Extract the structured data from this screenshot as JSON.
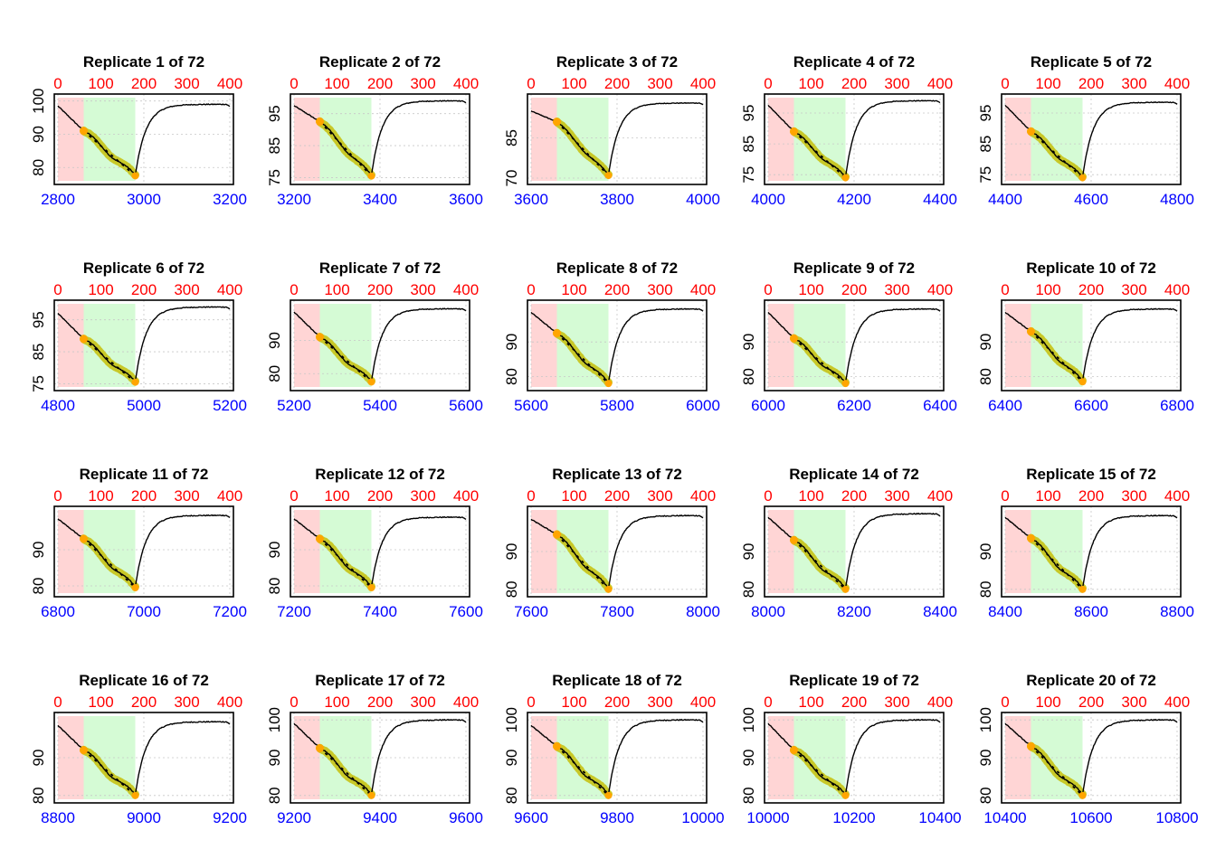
{
  "colors": {
    "background": "#ffffff",
    "title": "#000000",
    "bottom_axis": "#0000ff",
    "top_axis": "#ff0000",
    "trace": "#000000",
    "fit_highlight": "#c8c828",
    "fit_start_point": "#ffa500",
    "fit_line": "#000000",
    "region_red": "#ffd5d5",
    "region_green": "#d5fbd5",
    "grid": "#c8c8c8",
    "frame": "#000000"
  },
  "chart_data": {
    "type": "scatter",
    "layout": "grid of 5 columns by 4 rows",
    "grid": true,
    "shared": {
      "top_axis": {
        "ticks": [
          0,
          100,
          200,
          300,
          400
        ]
      },
      "regions": [
        {
          "name": "red",
          "from": 0,
          "to": 60
        },
        {
          "name": "green",
          "from": 60,
          "to": 180
        }
      ],
      "rise_offset": 180
    },
    "panels": [
      {
        "title": "Replicate 1 of 72",
        "x_ticks": [
          "2800",
          "3000",
          "3200"
        ],
        "xlim": [
          2800,
          3200
        ],
        "y_ticks": [
          "80",
          "90",
          "100"
        ],
        "ylim": [
          76,
          101
        ],
        "series": {
          "start": 98.5,
          "fit_start": 91.0,
          "fit_end": 77.5,
          "plateau": 99.0
        }
      },
      {
        "title": "Replicate 2 of 72",
        "x_ticks": [
          "3200",
          "3400",
          "3600"
        ],
        "xlim": [
          3200,
          3600
        ],
        "y_ticks": [
          "75",
          "85",
          "95"
        ],
        "ylim": [
          74,
          100
        ],
        "series": {
          "start": 97.5,
          "fit_start": 92.5,
          "fit_end": 75.5,
          "plateau": 99.0
        }
      },
      {
        "title": "Replicate 3 of 72",
        "x_ticks": [
          "3600",
          "3800",
          "4000"
        ],
        "xlim": [
          3600,
          4000
        ],
        "y_ticks": [
          "70",
          "85"
        ],
        "ylim": [
          69,
          100
        ],
        "series": {
          "start": 95.0,
          "fit_start": 91.0,
          "fit_end": 71.0,
          "plateau": 98.0
        }
      },
      {
        "title": "Replicate 4 of 72",
        "x_ticks": [
          "4000",
          "4200",
          "4400"
        ],
        "xlim": [
          4000,
          4400
        ],
        "y_ticks": [
          "75",
          "85",
          "95"
        ],
        "ylim": [
          73,
          100
        ],
        "series": {
          "start": 97.5,
          "fit_start": 89.0,
          "fit_end": 74.0,
          "plateau": 99.0
        }
      },
      {
        "title": "Replicate 5 of 72",
        "x_ticks": [
          "4400",
          "4600",
          "4800"
        ],
        "xlim": [
          4400,
          4800
        ],
        "y_ticks": [
          "75",
          "85",
          "95"
        ],
        "ylim": [
          73,
          100
        ],
        "series": {
          "start": 97.5,
          "fit_start": 89.0,
          "fit_end": 74.0,
          "plateau": 98.5
        }
      },
      {
        "title": "Replicate 6 of 72",
        "x_ticks": [
          "4800",
          "5000",
          "5200"
        ],
        "xlim": [
          4800,
          5200
        ],
        "y_ticks": [
          "75",
          "85",
          "95"
        ],
        "ylim": [
          74,
          100
        ],
        "series": {
          "start": 97.0,
          "fit_start": 89.0,
          "fit_end": 75.5,
          "plateau": 99.0
        }
      },
      {
        "title": "Replicate 7 of 72",
        "x_ticks": [
          "5200",
          "5400",
          "5600"
        ],
        "xlim": [
          5200,
          5600
        ],
        "y_ticks": [
          "80",
          "90"
        ],
        "ylim": [
          76,
          101
        ],
        "series": {
          "start": 98.5,
          "fit_start": 91.0,
          "fit_end": 77.5,
          "plateau": 99.5
        }
      },
      {
        "title": "Replicate 8 of 72",
        "x_ticks": [
          "5600",
          "5800",
          "6000"
        ],
        "xlim": [
          5600,
          6000
        ],
        "y_ticks": [
          "80",
          "90"
        ],
        "ylim": [
          77,
          101
        ],
        "series": {
          "start": 98.5,
          "fit_start": 92.5,
          "fit_end": 78.0,
          "plateau": 99.5
        }
      },
      {
        "title": "Replicate 9 of 72",
        "x_ticks": [
          "6000",
          "6200",
          "6400"
        ],
        "xlim": [
          6000,
          6400
        ],
        "y_ticks": [
          "80",
          "90"
        ],
        "ylim": [
          77,
          101
        ],
        "series": {
          "start": 98.5,
          "fit_start": 91.0,
          "fit_end": 78.0,
          "plateau": 99.5
        }
      },
      {
        "title": "Replicate 10 of 72",
        "x_ticks": [
          "6400",
          "6600",
          "6800"
        ],
        "xlim": [
          6400,
          6800
        ],
        "y_ticks": [
          "80",
          "90"
        ],
        "ylim": [
          77,
          101
        ],
        "series": {
          "start": 98.5,
          "fit_start": 93.0,
          "fit_end": 78.5,
          "plateau": 99.5
        }
      },
      {
        "title": "Replicate 11 of 72",
        "x_ticks": [
          "6800",
          "7000",
          "7200"
        ],
        "xlim": [
          6800,
          7200
        ],
        "y_ticks": [
          "80",
          "90"
        ],
        "ylim": [
          78,
          101
        ],
        "series": {
          "start": 98.5,
          "fit_start": 93.0,
          "fit_end": 79.5,
          "plateau": 99.5
        }
      },
      {
        "title": "Replicate 12 of 72",
        "x_ticks": [
          "7200",
          "7400",
          "7600"
        ],
        "xlim": [
          7200,
          7600
        ],
        "y_ticks": [
          "80",
          "90"
        ],
        "ylim": [
          78,
          101
        ],
        "series": {
          "start": 98.5,
          "fit_start": 93.0,
          "fit_end": 79.5,
          "plateau": 99.0
        }
      },
      {
        "title": "Replicate 13 of 72",
        "x_ticks": [
          "7600",
          "7800",
          "8000"
        ],
        "xlim": [
          7600,
          8000
        ],
        "y_ticks": [
          "80",
          "90"
        ],
        "ylim": [
          79,
          101
        ],
        "series": {
          "start": 98.5,
          "fit_start": 94.5,
          "fit_end": 80.0,
          "plateau": 99.5
        }
      },
      {
        "title": "Replicate 14 of 72",
        "x_ticks": [
          "8000",
          "8200",
          "8400"
        ],
        "xlim": [
          8000,
          8400
        ],
        "y_ticks": [
          "80",
          "90"
        ],
        "ylim": [
          79,
          101
        ],
        "series": {
          "start": 99.0,
          "fit_start": 93.0,
          "fit_end": 80.0,
          "plateau": 100.0
        }
      },
      {
        "title": "Replicate 15 of 72",
        "x_ticks": [
          "8400",
          "8600",
          "8800"
        ],
        "xlim": [
          8400,
          8800
        ],
        "y_ticks": [
          "80",
          "90"
        ],
        "ylim": [
          79,
          101
        ],
        "series": {
          "start": 99.0,
          "fit_start": 93.5,
          "fit_end": 80.0,
          "plateau": 99.5
        }
      },
      {
        "title": "Replicate 16 of 72",
        "x_ticks": [
          "8800",
          "9000",
          "9200"
        ],
        "xlim": [
          8800,
          9200
        ],
        "y_ticks": [
          "80",
          "90"
        ],
        "ylim": [
          79,
          101
        ],
        "series": {
          "start": 98.5,
          "fit_start": 92.0,
          "fit_end": 80.0,
          "plateau": 99.5
        }
      },
      {
        "title": "Replicate 17 of 72",
        "x_ticks": [
          "9200",
          "9400",
          "9600"
        ],
        "xlim": [
          9200,
          9600
        ],
        "y_ticks": [
          "80",
          "90",
          "100"
        ],
        "ylim": [
          79,
          101
        ],
        "series": {
          "start": 99.0,
          "fit_start": 92.5,
          "fit_end": 80.0,
          "plateau": 100.0
        }
      },
      {
        "title": "Replicate 18 of 72",
        "x_ticks": [
          "9600",
          "9800",
          "10000"
        ],
        "xlim": [
          9600,
          10000
        ],
        "y_ticks": [
          "80",
          "90",
          "100"
        ],
        "ylim": [
          79,
          101
        ],
        "series": {
          "start": 98.5,
          "fit_start": 93.0,
          "fit_end": 80.0,
          "plateau": 100.0
        }
      },
      {
        "title": "Replicate 19 of 72",
        "x_ticks": [
          "10000",
          "10200",
          "10400"
        ],
        "xlim": [
          10000,
          10400
        ],
        "y_ticks": [
          "80",
          "90",
          "100"
        ],
        "ylim": [
          79,
          101
        ],
        "series": {
          "start": 99.0,
          "fit_start": 92.0,
          "fit_end": 80.0,
          "plateau": 100.0
        }
      },
      {
        "title": "Replicate 20 of 72",
        "x_ticks": [
          "10400",
          "10600",
          "10800"
        ],
        "xlim": [
          10400,
          10800
        ],
        "y_ticks": [
          "80",
          "90",
          "100"
        ],
        "ylim": [
          79,
          101
        ],
        "series": {
          "start": 99.0,
          "fit_start": 93.0,
          "fit_end": 80.0,
          "plateau": 100.0
        }
      }
    ]
  }
}
